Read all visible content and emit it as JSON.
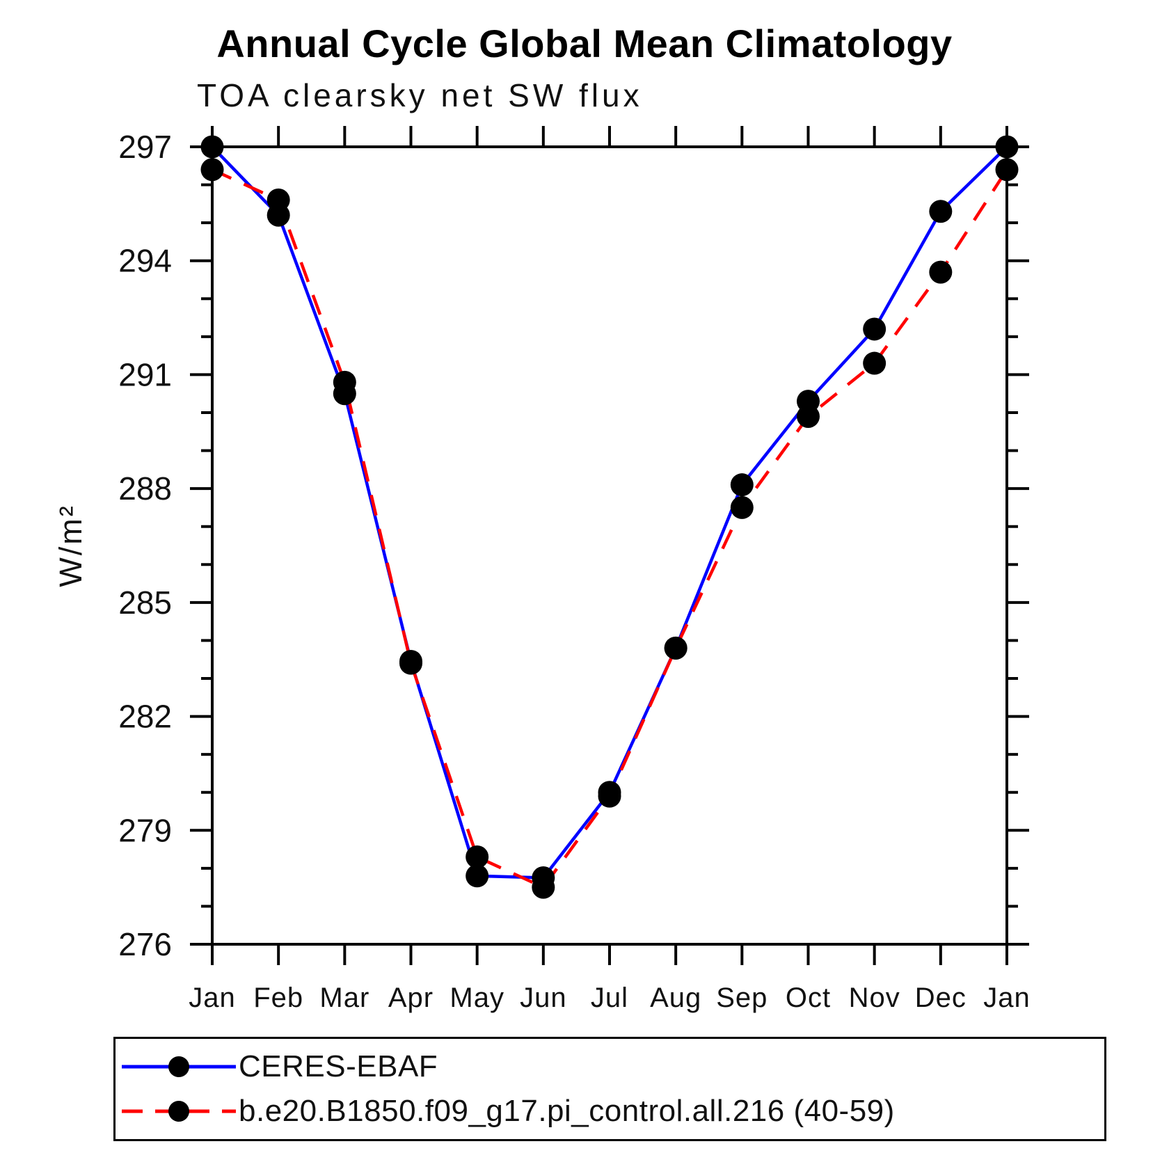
{
  "chart_data": {
    "type": "line",
    "title": "Annual Cycle Global Mean Climatology",
    "subtitle": "TOA clearsky net SW flux",
    "xlabel": "",
    "ylabel": "W/m²",
    "categories": [
      "Jan",
      "Feb",
      "Mar",
      "Apr",
      "May",
      "Jun",
      "Jul",
      "Aug",
      "Sep",
      "Oct",
      "Nov",
      "Dec",
      "Jan"
    ],
    "series": [
      {
        "name": "CERES-EBAF",
        "color": "#0000ff",
        "line_style": "solid",
        "marker": "circle",
        "marker_color": "#000000",
        "values": [
          297.0,
          295.2,
          290.5,
          283.45,
          277.8,
          277.75,
          280.0,
          283.8,
          288.1,
          290.3,
          292.2,
          295.3,
          297.0
        ]
      },
      {
        "name": "b.e20.B1850.f09_g17.pi_control.all.216 (40-59)",
        "color": "#ff0000",
        "line_style": "dashed",
        "marker": "circle",
        "marker_color": "#000000",
        "values": [
          296.4,
          295.6,
          290.8,
          283.4,
          278.3,
          277.5,
          279.9,
          283.8,
          287.5,
          289.9,
          291.3,
          293.7,
          296.4
        ]
      }
    ],
    "ylim": [
      276,
      297
    ],
    "y_major_step": 3,
    "y_minor_step": 1,
    "grid": false,
    "frame": "box",
    "tick_direction": "out",
    "legend_position": "bottom-box",
    "axis_color": "#000000"
  }
}
